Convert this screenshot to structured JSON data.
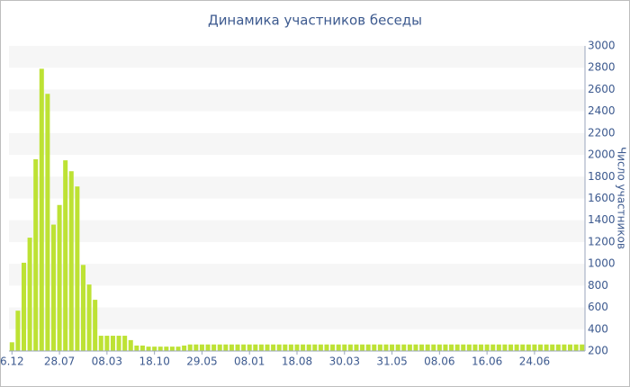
{
  "chart_data": {
    "type": "bar",
    "title": "Динамика участников беседы",
    "ylabel": "Число участников",
    "color": "#bde234",
    "grid": "bands",
    "yaxis_side": "right",
    "ylim": [
      200,
      3000
    ],
    "yticks": [
      200,
      400,
      600,
      800,
      1000,
      1200,
      1400,
      1600,
      1800,
      2000,
      2200,
      2400,
      2600,
      2800,
      3000
    ],
    "categories": [
      "6.12",
      null,
      null,
      null,
      null,
      null,
      null,
      null,
      "28.07",
      null,
      null,
      null,
      null,
      null,
      null,
      null,
      "08.03",
      null,
      null,
      null,
      null,
      null,
      null,
      null,
      "18.10",
      null,
      null,
      null,
      null,
      null,
      null,
      null,
      "29.05",
      null,
      null,
      null,
      null,
      null,
      null,
      null,
      "08.01",
      null,
      null,
      null,
      null,
      null,
      null,
      null,
      "18.08",
      null,
      null,
      null,
      null,
      null,
      null,
      null,
      "30.03",
      null,
      null,
      null,
      null,
      null,
      null,
      null,
      "31.05",
      null,
      null,
      null,
      null,
      null,
      null,
      null,
      "08.06",
      null,
      null,
      null,
      null,
      null,
      null,
      null,
      "16.06",
      null,
      null,
      null,
      null,
      null,
      null,
      null,
      "24.06",
      null,
      null,
      null,
      null,
      null,
      null,
      null,
      null
    ],
    "values": [
      280,
      570,
      1010,
      1240,
      1960,
      2790,
      2560,
      1360,
      1540,
      1950,
      1850,
      1710,
      990,
      810,
      670,
      340,
      340,
      340,
      340,
      340,
      300,
      250,
      250,
      240,
      240,
      240,
      240,
      240,
      240,
      250,
      260,
      260,
      260,
      260,
      260,
      260,
      260,
      260,
      260,
      260,
      260,
      260,
      260,
      260,
      260,
      260,
      260,
      260,
      260,
      260,
      260,
      260,
      260,
      260,
      260,
      260,
      260,
      260,
      260,
      260,
      260,
      260,
      260,
      260,
      260,
      260,
      260,
      260,
      260,
      260,
      260,
      260,
      260,
      260,
      260,
      260,
      260,
      260,
      260,
      260,
      260,
      260,
      260,
      260,
      260,
      260,
      260,
      260,
      260,
      260,
      260,
      260,
      260,
      260,
      260,
      260,
      260
    ]
  }
}
